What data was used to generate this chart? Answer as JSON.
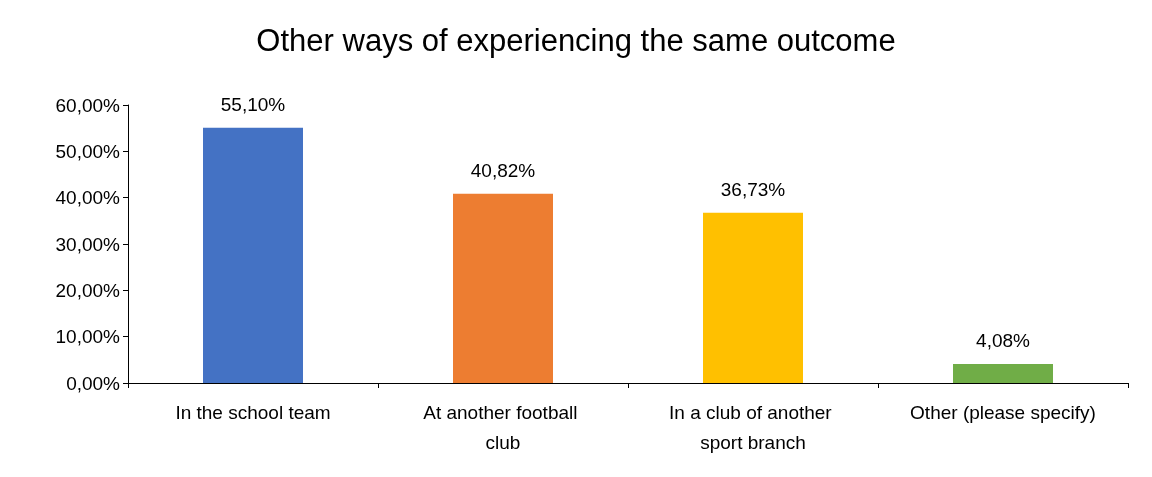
{
  "chart_data": {
    "type": "bar",
    "title": "Other ways of experiencing the same outcome",
    "categories": [
      "In the school team",
      "At another football club",
      "In a club of another sport branch",
      "Other (please specify)"
    ],
    "values": [
      55.1,
      40.82,
      36.73,
      4.08
    ],
    "colors": [
      "#4472c4",
      "#ed7d31",
      "#ffc000",
      "#70ad47"
    ],
    "value_labels": [
      "55,10%",
      "40,82%",
      "36,73%",
      "4,08%"
    ],
    "ylim": [
      0,
      60
    ],
    "yticks": [
      {
        "value": 0,
        "label": "0,00%"
      },
      {
        "value": 10,
        "label": "10,00%"
      },
      {
        "value": 20,
        "label": "20,00%"
      },
      {
        "value": 30,
        "label": "30,00%"
      },
      {
        "value": 40,
        "label": "40,00%"
      },
      {
        "value": 50,
        "label": "50,00%"
      },
      {
        "value": 60,
        "label": "60,00%"
      }
    ],
    "grid": false
  }
}
